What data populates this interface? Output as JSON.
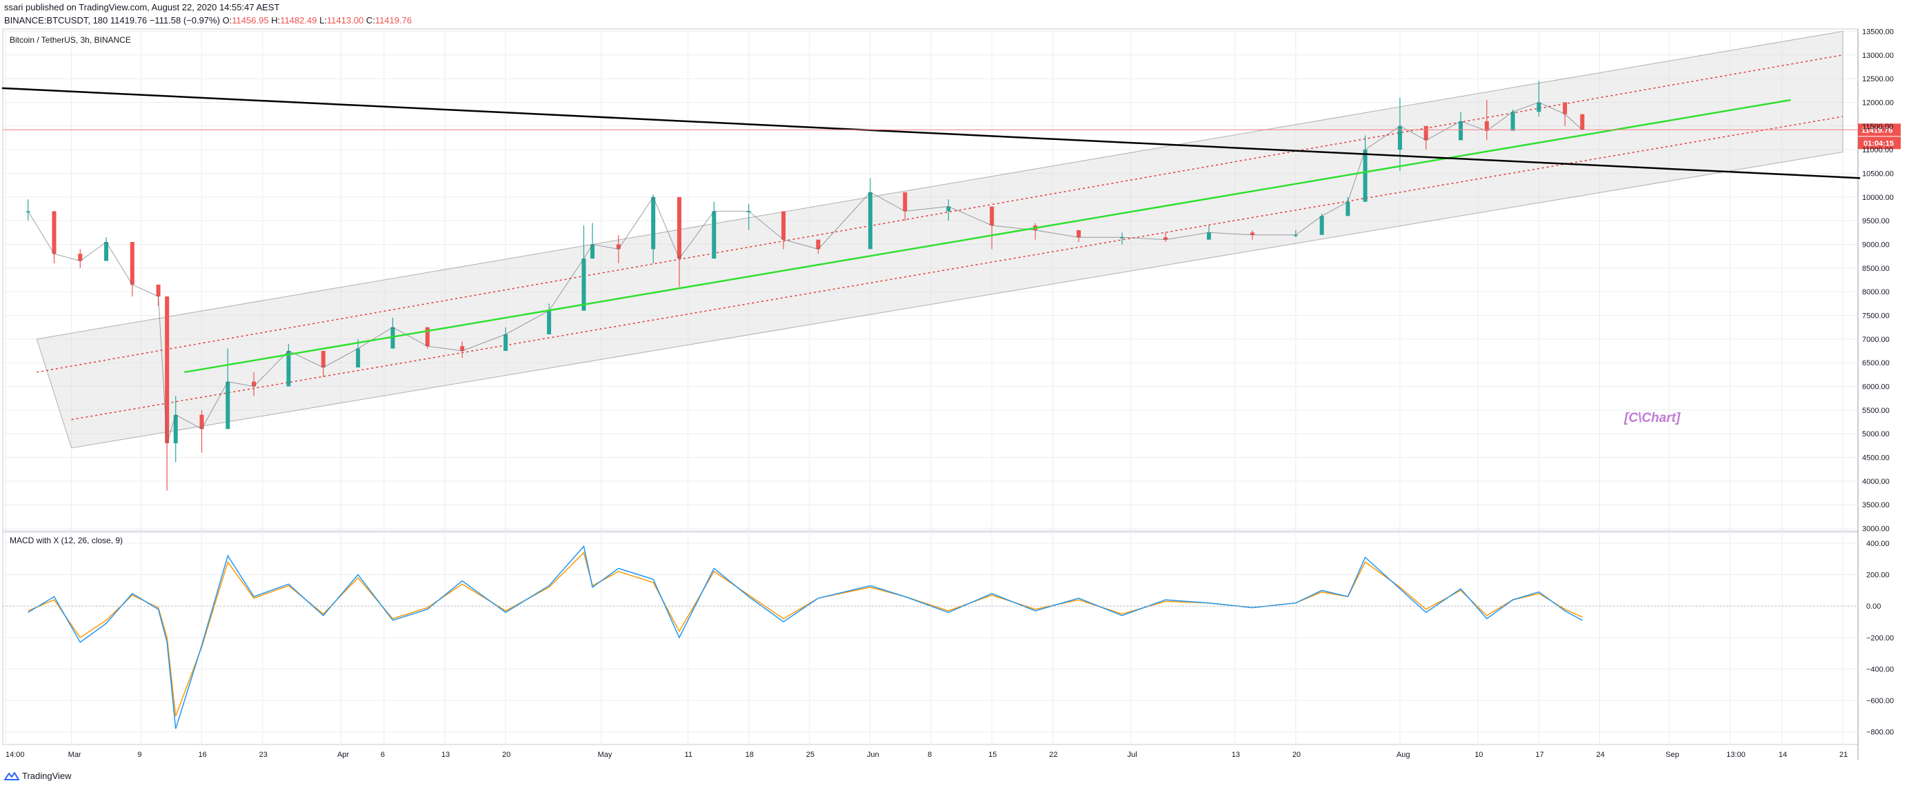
{
  "header": {
    "publish_line": "ssari published on TradingView.com, August 22, 2020 14:55:47 AEST",
    "symbol": "BINANCE:BTCUSDT, 180",
    "last": "11419.76",
    "change": "−111.58 (−0.97%)",
    "o_label": "O:",
    "o_value": "11456.95",
    "h_label": "H:",
    "h_value": "11482.49",
    "l_label": "L:",
    "l_value": "11413.00",
    "c_label": "C:",
    "c_value": "11419.76"
  },
  "footer": {
    "brand": "TradingView"
  },
  "colors": {
    "grid": "#ebedf1",
    "channel_fill": "#dcdcdc",
    "channel_dots": "#e53935",
    "trend_green": "#2ee02e",
    "black_line": "#000000",
    "price_line": "#f77c80",
    "candle_up": "#26a69a",
    "candle_down": "#ef5350",
    "macd": "#2196f3",
    "signal": "#ff9800",
    "watermark": "#c07bd6",
    "price_tag": "#ef5350"
  },
  "chart_data": [
    {
      "type": "candlestick",
      "title": "Bitcoin / TetherUS, 3h, BINANCE",
      "x_axis_ticks": [
        "14:00",
        "Mar",
        "9",
        "16",
        "23",
        "Apr",
        "6",
        "13",
        "20",
        "May",
        "11",
        "18",
        "25",
        "Jun",
        "8",
        "15",
        "22",
        "Jul",
        "13",
        "20",
        "Aug",
        "10",
        "17",
        "24",
        "Sep",
        "13:00",
        "14",
        "21"
      ],
      "y_axis_ticks": [
        3000,
        3500,
        4000,
        4500,
        5000,
        5500,
        6000,
        6500,
        7000,
        7500,
        8000,
        8500,
        9000,
        9500,
        10000,
        10500,
        11000,
        11500,
        12000,
        12500,
        13000,
        13500
      ],
      "ylim": [
        2950,
        13550
      ],
      "price_label": "11419.76",
      "countdown_label": "01:04:15",
      "watermark": "[C\\Chart]",
      "series": [
        {
          "name": "BTCUSDT",
          "dates": [
            "2020-02-25",
            "2020-02-28",
            "2020-03-02",
            "2020-03-05",
            "2020-03-08",
            "2020-03-11",
            "2020-03-12",
            "2020-03-13",
            "2020-03-16",
            "2020-03-19",
            "2020-03-22",
            "2020-03-26",
            "2020-03-30",
            "2020-04-03",
            "2020-04-07",
            "2020-04-11",
            "2020-04-15",
            "2020-04-20",
            "2020-04-25",
            "2020-04-29",
            "2020-04-30",
            "2020-05-03",
            "2020-05-07",
            "2020-05-10",
            "2020-05-14",
            "2020-05-18",
            "2020-05-22",
            "2020-05-26",
            "2020-06-01",
            "2020-06-05",
            "2020-06-10",
            "2020-06-15",
            "2020-06-20",
            "2020-06-25",
            "2020-06-30",
            "2020-07-05",
            "2020-07-10",
            "2020-07-15",
            "2020-07-20",
            "2020-07-23",
            "2020-07-26",
            "2020-07-28",
            "2020-08-01",
            "2020-08-04",
            "2020-08-08",
            "2020-08-11",
            "2020-08-14",
            "2020-08-17",
            "2020-08-20",
            "2020-08-22"
          ],
          "close": [
            9700,
            8800,
            8650,
            9050,
            8150,
            7900,
            4800,
            5400,
            5100,
            6100,
            6000,
            6750,
            6400,
            6800,
            7250,
            6850,
            6750,
            7100,
            7600,
            8700,
            9000,
            8900,
            10000,
            8700,
            9700,
            9700,
            9100,
            8900,
            10100,
            9700,
            9800,
            9400,
            9300,
            9150,
            9150,
            9100,
            9250,
            9200,
            9200,
            9600,
            9900,
            11000,
            11500,
            11200,
            11600,
            11400,
            11800,
            12000,
            11750,
            11420
          ],
          "high": [
            9950,
            9000,
            8900,
            9150,
            8400,
            8000,
            5100,
            5800,
            5500,
            6800,
            6300,
            6900,
            6600,
            7000,
            7450,
            7000,
            6950,
            7250,
            7750,
            9400,
            9450,
            9200,
            10050,
            9200,
            9900,
            9850,
            9550,
            9050,
            10400,
            9900,
            9950,
            9500,
            9450,
            9300,
            9250,
            9250,
            9400,
            9300,
            9300,
            9650,
            10000,
            11300,
            12100,
            11500,
            11800,
            12050,
            11850,
            12450,
            11850,
            11480
          ],
          "low": [
            9500,
            8600,
            8500,
            8850,
            7900,
            7700,
            3800,
            4400,
            4600,
            5850,
            5800,
            6500,
            6200,
            6600,
            7000,
            6800,
            6600,
            6900,
            7400,
            7600,
            8700,
            8600,
            8600,
            8100,
            9200,
            9300,
            8900,
            8800,
            9400,
            9500,
            9500,
            8900,
            9100,
            9050,
            9000,
            9050,
            9100,
            9100,
            9150,
            9200,
            9600,
            10650,
            10550,
            11000,
            11300,
            11200,
            11400,
            11700,
            11500,
            11410
          ]
        },
        {
          "name": "ascending channel",
          "upper_start": {
            "date": "2020-02-26",
            "value": 7000
          },
          "upper_end": {
            "date": "2020-09-21",
            "value": 13500
          },
          "lower_start": {
            "date": "2020-02-26",
            "value": 5700
          },
          "lower_end": {
            "date": "2020-09-21",
            "value": 11200
          },
          "lower2_start": {
            "date": "2020-03-01",
            "value": 4700
          },
          "lower2_end": {
            "date": "2020-09-21",
            "value": 10950
          },
          "inner_upper_start": {
            "date": "2020-02-26",
            "value": 6300
          },
          "inner_upper_end": {
            "date": "2020-09-21",
            "value": 13000
          },
          "inner_lower_start": {
            "date": "2020-03-01",
            "value": 5300
          },
          "inner_lower_end": {
            "date": "2020-09-21",
            "value": 11700
          }
        },
        {
          "name": "green trend line",
          "start": {
            "date": "2020-03-14",
            "value": 6300
          },
          "end": {
            "date": "2020-09-15",
            "value": 12050
          }
        },
        {
          "name": "long descending line",
          "start": {
            "date": "2020-02-22",
            "value": 12300
          },
          "end": {
            "date": "2020-09-23",
            "value": 10400
          }
        }
      ]
    },
    {
      "type": "line",
      "title": "MACD with X (12, 26, close, 9)",
      "y_axis_ticks": [
        -800,
        -600,
        -400,
        -200,
        0,
        200,
        400
      ],
      "ylim": [
        -880,
        470
      ],
      "series": [
        {
          "name": "MACD",
          "values": [
            -40,
            60,
            -230,
            -110,
            80,
            -20,
            -230,
            -780,
            -250,
            320,
            60,
            140,
            -60,
            200,
            -90,
            -20,
            160,
            -40,
            130,
            380,
            120,
            240,
            170,
            -200,
            240,
            60,
            -100,
            50,
            130,
            60,
            -40,
            80,
            -30,
            50,
            -60,
            40,
            20,
            -10,
            20,
            100,
            60,
            310,
            110,
            -40,
            110,
            -80,
            40,
            90,
            -30,
            -90
          ]
        },
        {
          "name": "Signal",
          "values": [
            -30,
            40,
            -200,
            -90,
            70,
            -10,
            -200,
            -700,
            -260,
            280,
            50,
            130,
            -50,
            180,
            -80,
            -10,
            140,
            -30,
            120,
            340,
            130,
            220,
            150,
            -160,
            220,
            70,
            -80,
            50,
            120,
            60,
            -30,
            70,
            -20,
            40,
            -50,
            30,
            20,
            -10,
            20,
            90,
            60,
            280,
            120,
            -20,
            100,
            -60,
            40,
            80,
            -20,
            -70
          ]
        }
      ]
    }
  ]
}
